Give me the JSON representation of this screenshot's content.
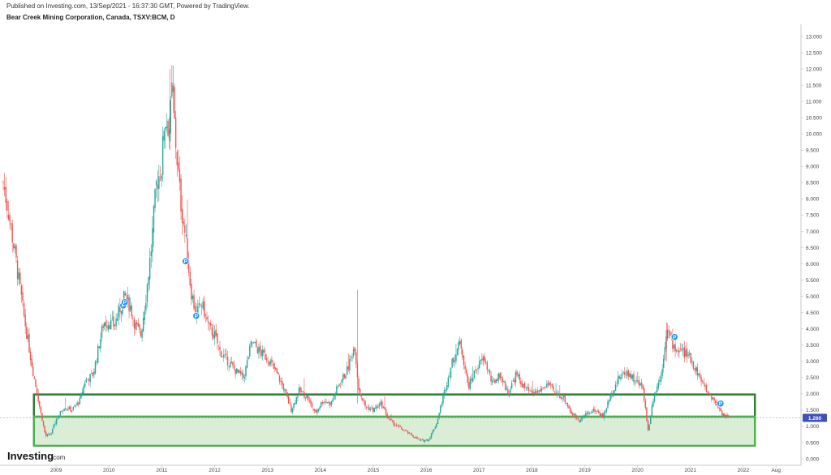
{
  "header": {
    "published": "Published on Investing.com, 13/Sep/2021 - 16:37:30 GMT, Powered by TradingView.",
    "title": "Bear Creek Mining Corporation, Canada, TSXV:BCM, D"
  },
  "logo": {
    "main": "Investing",
    "suffix": ".com"
  },
  "colors": {
    "up": "#26a69a",
    "down": "#ef5350",
    "marker": "#2196f3",
    "resistance_box": "#2e7d32",
    "support_box": "#4caf50",
    "support_fill": "#d6ecd2",
    "price_tag": "#3f51b5"
  },
  "chart_data": {
    "type": "candlestick",
    "ticker": "TSXV:BCM",
    "interval": "D",
    "last_price": "1.260",
    "x_ticks": [
      "2009",
      "2010",
      "2011",
      "2012",
      "2013",
      "2014",
      "2015",
      "2016",
      "2017",
      "2018",
      "2019",
      "2020",
      "2021",
      "2022",
      "Aug"
    ],
    "y_ticks": [
      "0.000",
      "0.500",
      "1.000",
      "1.500",
      "2.000",
      "2.500",
      "3.000",
      "3.500",
      "4.000",
      "4.500",
      "5.000",
      "5.500",
      "6.000",
      "6.500",
      "7.000",
      "7.500",
      "8.000",
      "8.500",
      "9.000",
      "9.500",
      "10.000",
      "10.500",
      "11.000",
      "11.500",
      "12.000",
      "12.500",
      "13.000"
    ],
    "ylim": [
      0,
      13.5
    ],
    "price_path": [
      [
        2008.0,
        8.5
      ],
      [
        2008.1,
        7.6
      ],
      [
        2008.25,
        6.0
      ],
      [
        2008.4,
        4.3
      ],
      [
        2008.55,
        2.8
      ],
      [
        2008.7,
        1.5
      ],
      [
        2008.8,
        0.7
      ],
      [
        2008.9,
        0.75
      ],
      [
        2009.0,
        1.2
      ],
      [
        2009.15,
        1.6
      ],
      [
        2009.3,
        1.5
      ],
      [
        2009.45,
        1.8
      ],
      [
        2009.55,
        2.4
      ],
      [
        2009.7,
        2.6
      ],
      [
        2009.8,
        3.4
      ],
      [
        2009.9,
        4.2
      ],
      [
        2010.0,
        4.2
      ],
      [
        2010.1,
        4.1
      ],
      [
        2010.2,
        4.6
      ],
      [
        2010.3,
        5.0
      ],
      [
        2010.4,
        4.7
      ],
      [
        2010.5,
        4.1
      ],
      [
        2010.6,
        3.8
      ],
      [
        2010.7,
        5.0
      ],
      [
        2010.8,
        6.5
      ],
      [
        2010.9,
        8.5
      ],
      [
        2011.0,
        9.0
      ],
      [
        2011.05,
        10.5
      ],
      [
        2011.15,
        10.2
      ],
      [
        2011.2,
        11.5
      ],
      [
        2011.25,
        10.0
      ],
      [
        2011.35,
        8.0
      ],
      [
        2011.45,
        6.8
      ],
      [
        2011.55,
        5.2
      ],
      [
        2011.65,
        4.4
      ],
      [
        2011.75,
        4.8
      ],
      [
        2011.9,
        4.0
      ],
      [
        2012.0,
        3.8
      ],
      [
        2012.1,
        3.3
      ],
      [
        2012.25,
        3.0
      ],
      [
        2012.4,
        2.7
      ],
      [
        2012.55,
        2.5
      ],
      [
        2012.7,
        3.6
      ],
      [
        2012.85,
        3.3
      ],
      [
        2013.0,
        3.1
      ],
      [
        2013.15,
        2.7
      ],
      [
        2013.3,
        2.2
      ],
      [
        2013.45,
        1.5
      ],
      [
        2013.6,
        2.1
      ],
      [
        2013.75,
        1.9
      ],
      [
        2013.9,
        1.4
      ],
      [
        2014.05,
        1.8
      ],
      [
        2014.2,
        1.7
      ],
      [
        2014.35,
        2.3
      ],
      [
        2014.5,
        2.7
      ],
      [
        2014.65,
        3.5
      ],
      [
        2014.72,
        2.2
      ],
      [
        2014.85,
        1.6
      ],
      [
        2015.0,
        1.5
      ],
      [
        2015.15,
        1.7
      ],
      [
        2015.3,
        1.2
      ],
      [
        2015.5,
        0.95
      ],
      [
        2015.7,
        0.75
      ],
      [
        2015.9,
        0.55
      ],
      [
        2016.05,
        0.6
      ],
      [
        2016.2,
        1.1
      ],
      [
        2016.35,
        2.1
      ],
      [
        2016.5,
        3.0
      ],
      [
        2016.65,
        3.6
      ],
      [
        2016.8,
        2.2
      ],
      [
        2016.95,
        2.8
      ],
      [
        2017.1,
        3.1
      ],
      [
        2017.25,
        2.3
      ],
      [
        2017.4,
        2.6
      ],
      [
        2017.55,
        2.0
      ],
      [
        2017.7,
        2.6
      ],
      [
        2017.85,
        2.2
      ],
      [
        2018.0,
        2.0
      ],
      [
        2018.15,
        2.1
      ],
      [
        2018.3,
        2.3
      ],
      [
        2018.45,
        2.0
      ],
      [
        2018.6,
        1.9
      ],
      [
        2018.75,
        1.4
      ],
      [
        2018.9,
        1.2
      ],
      [
        2019.05,
        1.4
      ],
      [
        2019.2,
        1.5
      ],
      [
        2019.35,
        1.3
      ],
      [
        2019.5,
        2.0
      ],
      [
        2019.65,
        2.5
      ],
      [
        2019.8,
        2.7
      ],
      [
        2019.95,
        2.4
      ],
      [
        2020.1,
        2.2
      ],
      [
        2020.2,
        0.85
      ],
      [
        2020.3,
        1.9
      ],
      [
        2020.45,
        2.6
      ],
      [
        2020.55,
        4.0
      ],
      [
        2020.7,
        3.4
      ],
      [
        2020.85,
        3.3
      ],
      [
        2021.0,
        3.1
      ],
      [
        2021.15,
        2.6
      ],
      [
        2021.3,
        2.1
      ],
      [
        2021.45,
        1.8
      ],
      [
        2021.6,
        1.4
      ],
      [
        2021.72,
        1.26
      ]
    ],
    "markers": [
      {
        "year": 2010.27,
        "price": 4.72,
        "label": "P"
      },
      {
        "year": 2010.3,
        "price": 4.82,
        "label": "P"
      },
      {
        "year": 2011.45,
        "price": 6.08,
        "label": "P"
      },
      {
        "year": 2011.65,
        "price": 4.4,
        "label": "P"
      },
      {
        "year": 2020.7,
        "price": 3.75,
        "label": "P"
      },
      {
        "year": 2021.57,
        "price": 1.7,
        "label": "P"
      }
    ],
    "zones": [
      {
        "name": "resistance",
        "x0": 2008.58,
        "x1": 2022.22,
        "y0": 1.28,
        "y1": 1.98
      },
      {
        "name": "support",
        "x0": 2008.58,
        "x1": 2022.22,
        "y0": 0.4,
        "y1": 1.3
      }
    ]
  }
}
